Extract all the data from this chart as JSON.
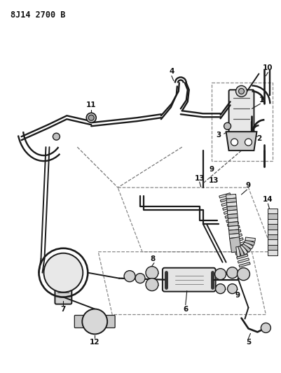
{
  "title": "8J14 2700 B",
  "bg_color": "#ffffff",
  "lc": "#1a1a1a",
  "fig_width": 4.02,
  "fig_height": 5.33,
  "dpi": 100
}
